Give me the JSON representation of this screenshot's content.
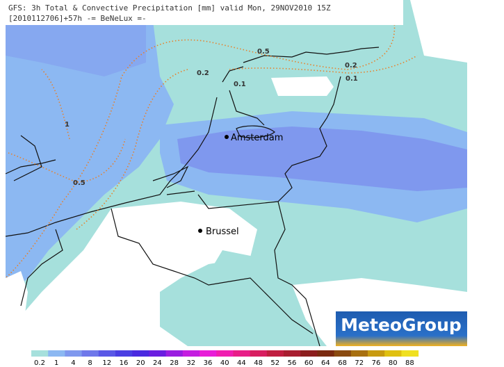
{
  "header": {
    "line1": "GFS: 3h Total & Convective Precipitation [mm] valid Mon, 29NOV2010 15Z",
    "line2": "[2010112706]+57h -= BeNeLux =-"
  },
  "cities": [
    {
      "label": "Amsterdam"
    },
    {
      "label": "Brussel"
    }
  ],
  "contour_labels": [
    "0.5",
    "0.2",
    "0.1",
    "1",
    "0.5",
    "0.2",
    "0.1"
  ],
  "logo": "MeteoGroup",
  "legend": {
    "labels": [
      "0.2",
      "1",
      "4",
      "8",
      "12",
      "16",
      "20",
      "24",
      "28",
      "32",
      "36",
      "40",
      "44",
      "48",
      "52",
      "56",
      "60",
      "64",
      "68",
      "72",
      "76",
      "80",
      "88"
    ],
    "colors": [
      "#a6e0dc",
      "#8cb8f2",
      "#7f98ee",
      "#6f78ea",
      "#5a58e6",
      "#4a3ee2",
      "#4a2ae0",
      "#6a1ee0",
      "#9a1ee0",
      "#c41ee0",
      "#e81ed8",
      "#f01eb0",
      "#e81e88",
      "#d81e60",
      "#c01e40",
      "#a81e30",
      "#8c1e1e",
      "#7a2a10",
      "#8a4a10",
      "#a87010",
      "#c89a10",
      "#e0c010",
      "#f0e020"
    ]
  }
}
